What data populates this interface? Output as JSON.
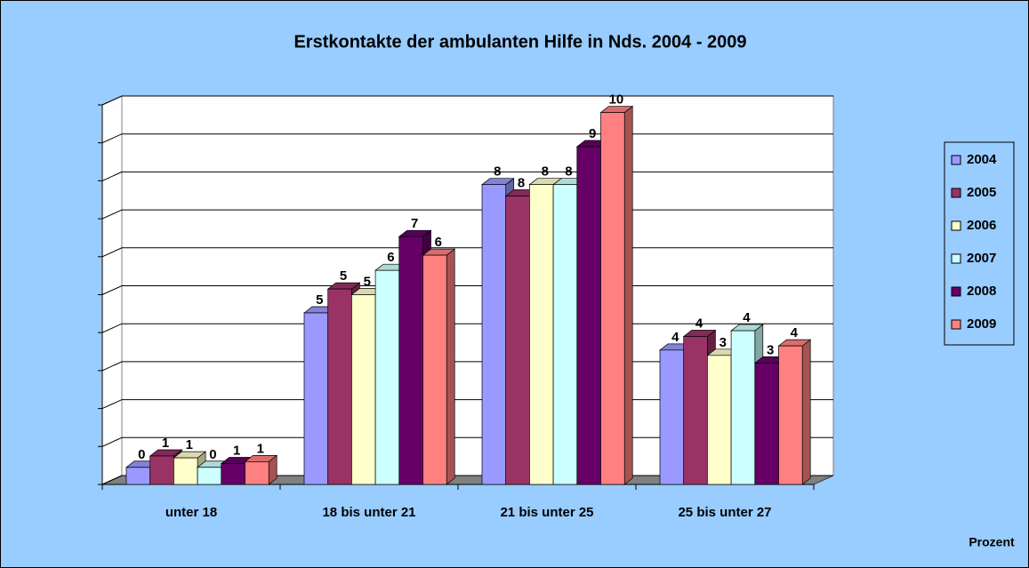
{
  "chart_data": {
    "type": "bar",
    "title": "Erstkontakte der ambulanten Hilfe in Nds. 2004 - 2009",
    "ylabel": "Prozent",
    "categories": [
      "unter 18",
      "18 bis unter 21",
      "21 bis unter 25",
      "25 bis unter 27"
    ],
    "series": [
      {
        "name": "2004",
        "color": "#9999ff",
        "values": [
          0.45,
          4.52,
          7.9,
          3.54
        ],
        "value_labels": [
          "0",
          "5",
          "8",
          "4"
        ]
      },
      {
        "name": "2005",
        "color": "#993366",
        "values": [
          0.75,
          5.15,
          7.6,
          3.9
        ],
        "value_labels": [
          "1",
          "5",
          "8",
          "4"
        ]
      },
      {
        "name": "2006",
        "color": "#ffffcc",
        "values": [
          0.7,
          5.0,
          7.9,
          3.4
        ],
        "value_labels": [
          "1",
          "5",
          "8",
          "3"
        ]
      },
      {
        "name": "2007",
        "color": "#ccffff",
        "values": [
          0.45,
          5.64,
          7.9,
          4.05
        ],
        "value_labels": [
          "0",
          "6",
          "8",
          "4"
        ]
      },
      {
        "name": "2008",
        "color": "#660066",
        "values": [
          0.55,
          6.53,
          8.9,
          3.2
        ],
        "value_labels": [
          "1",
          "7",
          "9",
          "3"
        ]
      },
      {
        "name": "2009",
        "color": "#ff8080",
        "values": [
          0.6,
          6.04,
          9.8,
          3.65
        ],
        "value_labels": [
          "1",
          "6",
          "10",
          "4"
        ]
      }
    ],
    "ylim": [
      0,
      10
    ],
    "yticks": [
      0,
      1,
      2,
      3,
      4,
      5,
      6,
      7,
      8,
      9,
      10
    ],
    "grid": true,
    "legend": "right"
  }
}
